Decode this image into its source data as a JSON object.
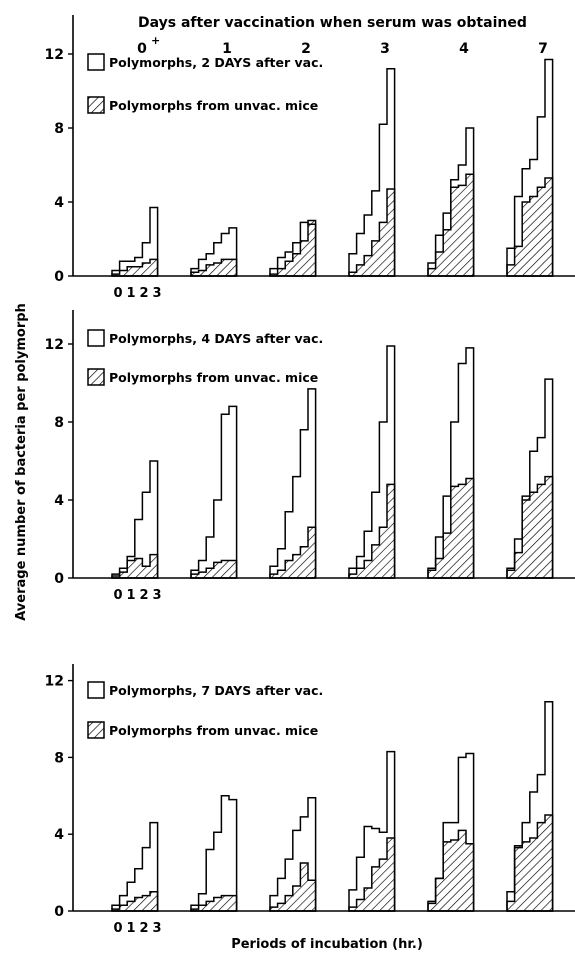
{
  "figure": {
    "top_axis_title": "Days after vaccination when serum was obtained",
    "ylabel": "Average number of bacteria per polymorph",
    "xlabel": "Periods of incubation (hr.)"
  },
  "chart_data": [
    {
      "type": "bar",
      "day_labels": [
        "0",
        "1",
        "2",
        "3",
        "4",
        "7"
      ],
      "day_superscripts": [
        "+",
        "",
        "",
        "",
        "",
        ""
      ],
      "period_labels": [
        "0",
        "1",
        "2",
        "3"
      ],
      "yticks": [
        0,
        4,
        8,
        12
      ],
      "ylim": [
        0,
        13
      ],
      "legend": [
        "Polymorphs, 2 DAYS after vac.",
        "Polymorphs from unvac. mice"
      ],
      "series": [
        {
          "name": "Polymorphs, 2 DAYS after vac.",
          "fill": "open",
          "values": [
            [
              0.3,
              0.8,
              0.8,
              1.0,
              1.8,
              3.7
            ],
            [
              0.4,
              0.9,
              1.2,
              1.8,
              2.3,
              2.6
            ],
            [
              0.4,
              1.0,
              1.3,
              1.8,
              2.9,
              2.8
            ],
            [
              1.2,
              2.3,
              3.3,
              4.6,
              8.2,
              11.2
            ],
            [
              0.7,
              2.2,
              3.4,
              5.2,
              6.0,
              8.0
            ],
            [
              1.5,
              4.3,
              5.8,
              6.3,
              8.6,
              11.7
            ]
          ]
        },
        {
          "name": "Polymorphs from unvac. mice",
          "fill": "hatched",
          "values": [
            [
              0.1,
              0.3,
              0.5,
              0.5,
              0.7,
              0.9
            ],
            [
              0.2,
              0.3,
              0.6,
              0.7,
              0.9,
              0.9
            ],
            [
              0.1,
              0.4,
              0.8,
              1.2,
              1.9,
              3.0
            ],
            [
              0.2,
              0.6,
              1.1,
              1.9,
              2.9,
              4.7
            ],
            [
              0.4,
              1.3,
              2.5,
              4.8,
              4.9,
              5.5
            ],
            [
              0.6,
              1.6,
              4.0,
              4.3,
              4.8,
              5.3
            ]
          ]
        }
      ]
    },
    {
      "type": "bar",
      "day_labels": [],
      "day_superscripts": [],
      "period_labels": [
        "0",
        "1",
        "2",
        "3"
      ],
      "yticks": [
        0,
        4,
        8,
        12
      ],
      "ylim": [
        0,
        13
      ],
      "legend": [
        "Polymorphs, 4 DAYS after vac.",
        "Polymorphs from unvac. mice"
      ],
      "series": [
        {
          "name": "Polymorphs, 4 DAYS after vac.",
          "fill": "open",
          "values": [
            [
              0.2,
              0.5,
              1.1,
              3.0,
              4.4,
              6.0
            ],
            [
              0.4,
              0.9,
              2.1,
              4.0,
              8.4,
              8.8
            ],
            [
              0.6,
              1.5,
              3.4,
              5.2,
              7.6,
              9.7
            ],
            [
              0.5,
              1.1,
              2.4,
              4.4,
              8.0,
              11.9
            ],
            [
              0.5,
              2.1,
              4.2,
              8.0,
              11.0,
              11.8
            ],
            [
              0.5,
              2.0,
              4.0,
              6.5,
              7.2,
              10.2
            ]
          ]
        },
        {
          "name": "Polymorphs from unvac. mice",
          "fill": "hatched",
          "values": [
            [
              0.1,
              0.3,
              0.9,
              1.0,
              0.6,
              1.2
            ],
            [
              0.2,
              0.3,
              0.5,
              0.8,
              0.9,
              0.9
            ],
            [
              0.2,
              0.4,
              0.9,
              1.2,
              1.6,
              2.6
            ],
            [
              0.2,
              0.5,
              0.9,
              1.7,
              2.6,
              4.8
            ],
            [
              0.4,
              1.0,
              2.3,
              4.7,
              4.8,
              5.1
            ],
            [
              0.4,
              1.3,
              4.2,
              4.4,
              4.8,
              5.2
            ]
          ]
        }
      ]
    },
    {
      "type": "bar",
      "day_labels": [],
      "day_superscripts": [],
      "period_labels": [
        "0",
        "1",
        "2",
        "3"
      ],
      "yticks": [
        0,
        4,
        8,
        12
      ],
      "ylim": [
        0,
        13
      ],
      "legend": [
        "Polymorphs, 7 DAYS after vac.",
        "Polymorphs from unvac. mice"
      ],
      "series": [
        {
          "name": "Polymorphs, 7 DAYS after vac.",
          "fill": "open",
          "values": [
            [
              0.3,
              0.8,
              1.5,
              2.2,
              3.3,
              4.6
            ],
            [
              0.3,
              0.9,
              3.2,
              4.1,
              6.0,
              5.8
            ],
            [
              0.8,
              1.7,
              2.7,
              4.2,
              4.9,
              5.9
            ],
            [
              1.1,
              2.8,
              4.4,
              4.3,
              4.1,
              8.3
            ],
            [
              0.5,
              1.7,
              4.6,
              4.6,
              8.0,
              8.2
            ],
            [
              1.0,
              3.3,
              4.6,
              6.2,
              7.1,
              10.9
            ]
          ]
        },
        {
          "name": "Polymorphs from unvac. mice",
          "fill": "hatched",
          "values": [
            [
              0.1,
              0.3,
              0.5,
              0.7,
              0.8,
              1.0
            ],
            [
              0.1,
              0.3,
              0.5,
              0.7,
              0.8,
              0.8
            ],
            [
              0.2,
              0.4,
              0.8,
              1.3,
              2.5,
              1.6
            ],
            [
              0.2,
              0.6,
              1.2,
              2.3,
              2.7,
              3.8
            ],
            [
              0.4,
              1.7,
              3.6,
              3.7,
              4.2,
              3.5
            ],
            [
              0.5,
              3.4,
              3.6,
              3.8,
              4.6,
              5.0
            ]
          ]
        }
      ]
    }
  ]
}
